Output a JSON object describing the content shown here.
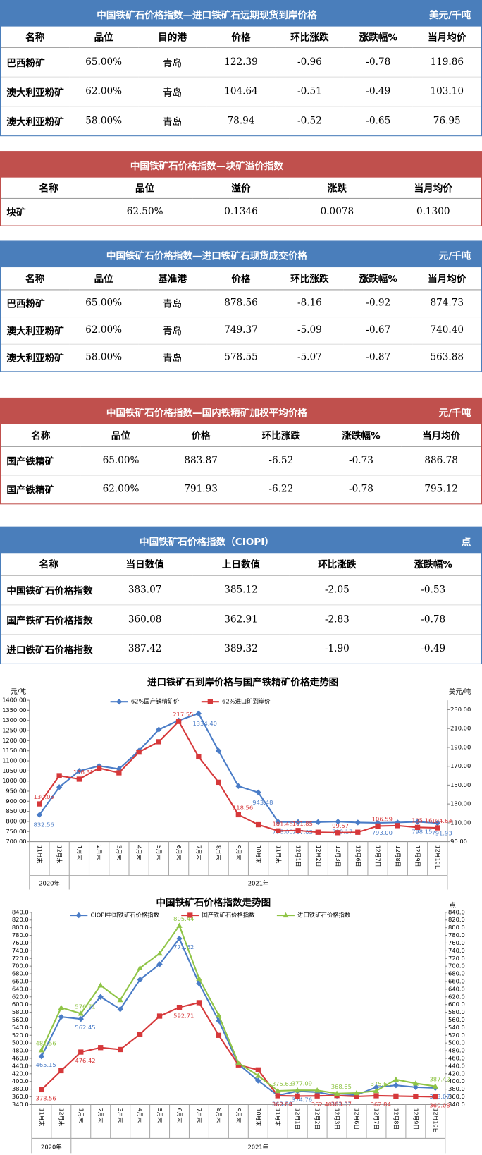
{
  "tables": [
    {
      "title": "中国铁矿石价格指数—进口铁矿石远期现货到岸价格",
      "unit": "美元/千吨",
      "header": [
        "名称",
        "品位",
        "目的港",
        "价格",
        "环比涨跌",
        "涨跌幅%",
        "当月均价"
      ],
      "rows": [
        [
          "巴西粉矿",
          "65.00%",
          "青岛",
          "122.39",
          "-0.96",
          "-0.78",
          "119.86"
        ],
        [
          "澳大利亚粉矿",
          "62.00%",
          "青岛",
          "104.64",
          "-0.51",
          "-0.49",
          "103.10"
        ],
        [
          "澳大利亚粉矿",
          "58.00%",
          "青岛",
          "78.94",
          "-0.52",
          "-0.65",
          "76.95"
        ]
      ]
    },
    {
      "title": "中国铁矿石价格指数—块矿溢价指数",
      "header": [
        "名称",
        "品位",
        "溢价",
        "涨跌",
        "当月均价"
      ],
      "rows": [
        [
          "块矿",
          "62.50%",
          "0.1346",
          "0.0078",
          "0.1300"
        ]
      ]
    },
    {
      "title": "中国铁矿石价格指数—进口铁矿石现货成交价格",
      "unit": "元/千吨",
      "header": [
        "名称",
        "品位",
        "基准港",
        "价格",
        "环比涨跌",
        "涨跌幅%",
        "当月均价"
      ],
      "rows": [
        [
          "巴西粉矿",
          "65.00%",
          "青岛",
          "878.56",
          "-8.16",
          "-0.92",
          "874.73"
        ],
        [
          "澳大利亚粉矿",
          "62.00%",
          "青岛",
          "749.37",
          "-5.09",
          "-0.67",
          "740.40"
        ],
        [
          "澳大利亚粉矿",
          "58.00%",
          "青岛",
          "578.55",
          "-5.07",
          "-0.87",
          "563.88"
        ]
      ]
    },
    {
      "title": "中国铁矿石价格指数—国内铁精矿加权平均价格",
      "unit": "元/千吨",
      "header": [
        "名称",
        "品位",
        "价格",
        "环比涨跌",
        "涨跌幅%",
        "当月均价"
      ],
      "rows": [
        [
          "国产铁精矿",
          "65.00%",
          "883.87",
          "-6.52",
          "-0.73",
          "886.78"
        ],
        [
          "国产铁精矿",
          "62.00%",
          "791.93",
          "-6.22",
          "-0.78",
          "795.12"
        ]
      ]
    },
    {
      "title": "中国铁矿石价格指数（CIOPI）",
      "unit": "点",
      "header": [
        "名称",
        "当日数值",
        "上日数值",
        "环比涨跌",
        "涨跌幅%"
      ],
      "rows": [
        [
          "中国铁矿石价格指数",
          "383.07",
          "385.12",
          "-2.05",
          "-0.53"
        ],
        [
          "国产铁矿石价格指数",
          "360.08",
          "362.91",
          "-2.83",
          "-0.78"
        ],
        [
          "进口铁矿石价格指数",
          "387.42",
          "389.32",
          "-1.90",
          "-0.49"
        ]
      ]
    }
  ],
  "chart_data": [
    {
      "type": "line",
      "title": "进口铁矿石到岸价格与国产铁精矿价格走势图",
      "y_label": "元/吨",
      "y2_label": "美元/吨",
      "categories": [
        "11月末",
        "12月末",
        "1月末",
        "2月末",
        "3月末",
        "4月末",
        "5月末",
        "6月末",
        "7月末",
        "8月末",
        "9月末",
        "10月末",
        "11月末",
        "12月1日",
        "12月2日",
        "12月3日",
        "12月6日",
        "12月7日",
        "12月8日",
        "12月9日",
        "12月10日"
      ],
      "x_groups": [
        {
          "label": "2020年",
          "count": 2
        },
        {
          "label": "2021年",
          "count": 19
        }
      ],
      "ylim": [
        700,
        1400
      ],
      "yticks": [
        {
          "value": 700,
          "label": "700.00"
        },
        {
          "value": 750,
          "label": "750.00"
        },
        {
          "value": 800,
          "label": "800.00"
        },
        {
          "value": 850,
          "label": "850.00"
        },
        {
          "value": 900,
          "label": "900.00"
        },
        {
          "value": 950,
          "label": "950.00"
        },
        {
          "value": 1000,
          "label": "1000.00"
        },
        {
          "value": 1050,
          "label": "1050.00"
        },
        {
          "value": 1100,
          "label": "1100.00"
        },
        {
          "value": 1150,
          "label": "1150.00"
        },
        {
          "value": 1200,
          "label": "1200.00"
        },
        {
          "value": 1250,
          "label": "1250.00"
        },
        {
          "value": 1300,
          "label": "1300.00"
        },
        {
          "value": 1350,
          "label": "1350.00"
        },
        {
          "value": 1400,
          "label": "1400.00"
        }
      ],
      "y2lim": [
        90,
        240
      ],
      "y2ticks": [
        {
          "value": 90,
          "label": "90.00"
        },
        {
          "value": 110,
          "label": "110.00"
        },
        {
          "value": 130,
          "label": "130.00"
        },
        {
          "value": 150,
          "label": "150.00"
        },
        {
          "value": 170,
          "label": "170.00"
        },
        {
          "value": 190,
          "label": "190.00"
        },
        {
          "value": 210,
          "label": "210.00"
        },
        {
          "value": 230,
          "label": "230.00"
        }
      ],
      "grid": false,
      "series": [
        {
          "name": "62%国产铁精矿价",
          "color": "#4a7cc7",
          "marker": "diamond",
          "values": [
            832.56,
            970,
            1050,
            1075,
            1060,
            1150,
            1255,
            1300,
            1334.4,
            1150,
            975,
            943.48,
            798,
            797.03,
            797,
            799.17,
            795,
            793,
            795,
            798.15,
            791.93
          ],
          "value_labels": [
            "832.56",
            null,
            null,
            null,
            null,
            null,
            null,
            null,
            "1334.40",
            null,
            null,
            "943.48",
            "798.00",
            "797.03",
            null,
            "799.17",
            null,
            "793.00",
            null,
            "798.15",
            "791.93"
          ]
        },
        {
          "name": "62%进口矿到岸价",
          "color": "#d6383a",
          "marker": "square",
          "axis": "y2",
          "values": [
            130.05,
            160,
            156.31,
            168,
            163,
            185,
            196,
            217.55,
            180,
            153,
            118.56,
            108,
            101.46,
            101.85,
            100,
            99.57,
            100,
            106.59,
            107,
            105.16,
            104.64
          ],
          "value_labels": [
            "130.05",
            null,
            "156.31",
            null,
            null,
            null,
            null,
            "217.55",
            null,
            null,
            "118.56",
            null,
            "101.46",
            "101.85",
            null,
            "99.57",
            null,
            "106.59",
            null,
            "105.16",
            "104.64"
          ]
        }
      ]
    },
    {
      "type": "line",
      "title": "中国铁矿石价格指数走势图",
      "y2_label": "点",
      "categories": [
        "11月末",
        "12月末",
        "1月末",
        "2月末",
        "3月末",
        "4月末",
        "5月末",
        "6月末",
        "7月末",
        "8月末",
        "9月末",
        "10月末",
        "11月末",
        "12月1日",
        "12月2日",
        "12月3日",
        "12月6日",
        "12月7日",
        "12月8日",
        "12月9日",
        "12月10日"
      ],
      "x_groups": [
        {
          "label": "2020年",
          "count": 2
        },
        {
          "label": "2021年",
          "count": 19
        }
      ],
      "ylim": [
        340,
        840
      ],
      "yticks": [
        {
          "value": 340,
          "label": "340.0"
        },
        {
          "value": 360,
          "label": "360.0"
        },
        {
          "value": 380,
          "label": "380.0"
        },
        {
          "value": 400,
          "label": "400.0"
        },
        {
          "value": 420,
          "label": "420.0"
        },
        {
          "value": 440,
          "label": "440.0"
        },
        {
          "value": 460,
          "label": "460.0"
        },
        {
          "value": 480,
          "label": "480.0"
        },
        {
          "value": 500,
          "label": "500.0"
        },
        {
          "value": 520,
          "label": "520.0"
        },
        {
          "value": 540,
          "label": "540.0"
        },
        {
          "value": 560,
          "label": "560.0"
        },
        {
          "value": 580,
          "label": "580.0"
        },
        {
          "value": 600,
          "label": "600.0"
        },
        {
          "value": 620,
          "label": "620.0"
        },
        {
          "value": 640,
          "label": "640.0"
        },
        {
          "value": 660,
          "label": "660.0"
        },
        {
          "value": 680,
          "label": "680.0"
        },
        {
          "value": 700,
          "label": "700.0"
        },
        {
          "value": 720,
          "label": "720.0"
        },
        {
          "value": 740,
          "label": "740.0"
        },
        {
          "value": 760,
          "label": "760.0"
        },
        {
          "value": 780,
          "label": "780.0"
        },
        {
          "value": 800,
          "label": "800.0"
        },
        {
          "value": 820,
          "label": "820.0"
        },
        {
          "value": 840,
          "label": "840.0"
        }
      ],
      "y2lim": [
        340,
        840
      ],
      "y2ticks": [
        {
          "value": 340,
          "label": "340.0"
        },
        {
          "value": 360,
          "label": "360.0"
        },
        {
          "value": 380,
          "label": "380.0"
        },
        {
          "value": 400,
          "label": "400.0"
        },
        {
          "value": 420,
          "label": "420.0"
        },
        {
          "value": 440,
          "label": "440.0"
        },
        {
          "value": 460,
          "label": "460.0"
        },
        {
          "value": 480,
          "label": "480.0"
        },
        {
          "value": 500,
          "label": "500.0"
        },
        {
          "value": 520,
          "label": "520.0"
        },
        {
          "value": 540,
          "label": "540.0"
        },
        {
          "value": 560,
          "label": "560.0"
        },
        {
          "value": 580,
          "label": "580.0"
        },
        {
          "value": 600,
          "label": "600.0"
        },
        {
          "value": 620,
          "label": "620.0"
        },
        {
          "value": 640,
          "label": "640.0"
        },
        {
          "value": 660,
          "label": "660.0"
        },
        {
          "value": 680,
          "label": "680.0"
        },
        {
          "value": 700,
          "label": "700.0"
        },
        {
          "value": 720,
          "label": "720.0"
        },
        {
          "value": 740,
          "label": "740.0"
        },
        {
          "value": 760,
          "label": "760.0"
        },
        {
          "value": 780,
          "label": "780.0"
        },
        {
          "value": 800,
          "label": "800.0"
        },
        {
          "value": 820,
          "label": "820.0"
        },
        {
          "value": 840,
          "label": "840.0"
        }
      ],
      "grid": false,
      "series": [
        {
          "name": "CIOPI中国铁矿石价格指数",
          "color": "#4a7cc7",
          "marker": "diamond",
          "values": [
            465.15,
            568,
            562.45,
            620,
            588,
            665,
            705,
            771.62,
            655,
            558,
            445,
            402,
            363.59,
            374.76,
            372,
            362.81,
            365,
            385,
            390,
            385,
            383.07
          ],
          "value_labels": [
            "465.15",
            null,
            "562.45",
            null,
            null,
            null,
            null,
            "771.62",
            null,
            null,
            null,
            null,
            "363.59",
            "374.76",
            null,
            "362.81",
            null,
            null,
            null,
            null,
            "383.07"
          ]
        },
        {
          "name": "国产铁矿石价格指数",
          "color": "#d6383a",
          "marker": "square",
          "values": [
            378.56,
            428,
            476.42,
            488,
            483,
            523,
            570,
            592.71,
            605,
            520,
            443,
            430,
            362.84,
            362,
            362.4,
            363.37,
            361,
            362.84,
            362,
            361,
            360.08
          ],
          "value_labels": [
            "378.56",
            null,
            "476.42",
            null,
            null,
            null,
            null,
            "592.71",
            null,
            null,
            null,
            null,
            "362.84",
            null,
            "362.40",
            "363.37",
            null,
            "362.84",
            null,
            null,
            "360.08"
          ]
        },
        {
          "name": "进口铁矿石价格指数",
          "color": "#8fc446",
          "marker": "triangle",
          "values": [
            481.56,
            592,
            576.71,
            650,
            612,
            695,
            733,
            805.44,
            668,
            572,
            448,
            415,
            375.63,
            377.09,
            377,
            368.65,
            370,
            375.63,
            405,
            395,
            387.42
          ],
          "value_labels": [
            "481.56",
            null,
            "576.71",
            null,
            null,
            null,
            null,
            "805.44",
            null,
            null,
            null,
            null,
            "375.63",
            "377.09",
            null,
            "368.65",
            null,
            "375.63",
            null,
            null,
            "387.42"
          ]
        }
      ]
    }
  ]
}
